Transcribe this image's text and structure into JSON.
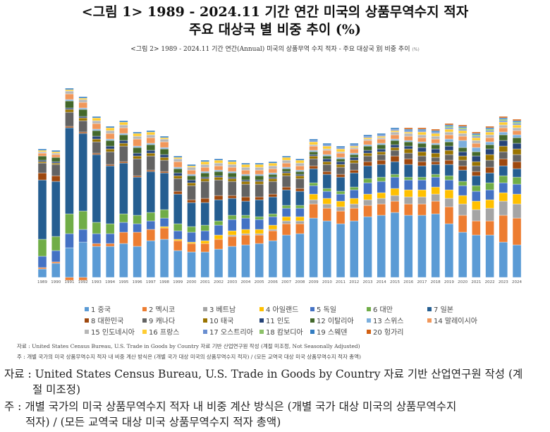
{
  "heading": {
    "line1": "<그림 1> 1989 - 2024.11 기간 연간 미국의 상품무역수지 적자",
    "line2": "주요 대상국 별 비중 추이 (%)"
  },
  "chart_data": {
    "type": "bar",
    "stacked": true,
    "title": "<그림 2> 1989 - 2024.11 기간 연간(Annual) 미국의 상품무역 수지 적자 - 주요 대상국 別 비중 추이",
    "title_unit": "(%)",
    "legend_position": "bottom",
    "grid": false,
    "ylim": [
      -5,
      135
    ],
    "categories": [
      "1989",
      "1990",
      "1991",
      "1992",
      "1993",
      "1994",
      "1995",
      "1996",
      "1997",
      "1998",
      "1999",
      "2000",
      "2001",
      "2002",
      "2003",
      "2004",
      "2005",
      "2006",
      "2007",
      "2008",
      "2009",
      "2010",
      "2011",
      "2012",
      "2013",
      "2014",
      "2015",
      "2016",
      "2017",
      "2018",
      "2019",
      "2020",
      "2021",
      "2022",
      "2023",
      "2024"
    ],
    "series": [
      {
        "name": "1 중국",
        "color": "#5b9bd5",
        "values": [
          6,
          10,
          21,
          25,
          22,
          22,
          24,
          22,
          26,
          27,
          19,
          18,
          18,
          20,
          22,
          23,
          24,
          26,
          30,
          31,
          42,
          40,
          38,
          40,
          43,
          44,
          46,
          44,
          44,
          45,
          38,
          32,
          30,
          30,
          25,
          23
        ]
      },
      {
        "name": "2 멕시코",
        "color": "#ed7d31",
        "values": [
          1,
          1,
          -2,
          -2,
          2,
          2,
          8,
          10,
          8,
          8,
          7,
          6,
          6,
          7,
          7,
          7,
          6,
          7,
          8,
          7,
          10,
          9,
          9,
          9,
          8,
          8,
          8,
          8,
          8,
          9,
          12,
          12,
          10,
          10,
          19,
          19
        ]
      },
      {
        "name": "3 베트남",
        "color": "#a5a5a5",
        "values": [
          0,
          0,
          0,
          0,
          0,
          0,
          0,
          0,
          0,
          0,
          0,
          0,
          0,
          0,
          1,
          1,
          1,
          1,
          2,
          2,
          3,
          3,
          3,
          3,
          4,
          4,
          4,
          5,
          5,
          5,
          6,
          8,
          8,
          9,
          10,
          10
        ]
      },
      {
        "name": "4 아일랜드",
        "color": "#ffc000",
        "values": [
          0,
          0,
          0,
          0,
          0,
          0,
          0,
          0,
          0,
          1,
          1,
          1,
          2,
          3,
          3,
          3,
          3,
          3,
          3,
          3,
          4,
          4,
          4,
          4,
          4,
          4,
          5,
          5,
          5,
          5,
          6,
          6,
          6,
          6,
          6,
          7
        ]
      },
      {
        "name": "5 독일",
        "color": "#4472c4",
        "values": [
          8,
          8,
          10,
          9,
          7,
          7,
          7,
          6,
          6,
          6,
          6,
          7,
          7,
          7,
          8,
          8,
          7,
          6,
          6,
          6,
          6,
          5,
          5,
          6,
          8,
          8,
          8,
          7,
          7,
          7,
          7,
          7,
          7,
          7,
          7,
          7
        ]
      },
      {
        "name": "6 대만",
        "color": "#70ad47",
        "values": [
          12,
          10,
          14,
          13,
          8,
          7,
          6,
          6,
          6,
          6,
          5,
          4,
          4,
          3,
          3,
          2,
          2,
          2,
          2,
          2,
          2,
          2,
          2,
          2,
          3,
          3,
          2,
          2,
          2,
          2,
          3,
          3,
          4,
          5,
          5,
          5
        ]
      },
      {
        "name": "7 일본",
        "color": "#255e91",
        "values": [
          42,
          39,
          61,
          55,
          48,
          41,
          36,
          27,
          29,
          26,
          21,
          17,
          16,
          15,
          12,
          10,
          12,
          12,
          11,
          10,
          10,
          10,
          10,
          10,
          9,
          9,
          9,
          9,
          8,
          7,
          8,
          8,
          7,
          7,
          7,
          6
        ]
      },
      {
        "name": "8 대한민국",
        "color": "#9e480e",
        "values": [
          5,
          4,
          1,
          1,
          1,
          1,
          1,
          1,
          1,
          1,
          2,
          2,
          3,
          3,
          2,
          3,
          2,
          2,
          2,
          2,
          2,
          2,
          2,
          2,
          3,
          3,
          4,
          4,
          3,
          2,
          3,
          3,
          3,
          4,
          5,
          5
        ]
      },
      {
        "name": "9 캐나다",
        "color": "#636363",
        "values": [
          7,
          8,
          10,
          8,
          8,
          9,
          11,
          12,
          10,
          8,
          9,
          10,
          12,
          11,
          10,
          9,
          9,
          9,
          8,
          7,
          5,
          5,
          5,
          5,
          4,
          4,
          4,
          4,
          4,
          3,
          4,
          4,
          4,
          5,
          5,
          5
        ]
      },
      {
        "name": "10 태국",
        "color": "#997300",
        "values": [
          1,
          1,
          2,
          2,
          2,
          2,
          2,
          2,
          2,
          2,
          2,
          2,
          2,
          2,
          2,
          2,
          2,
          2,
          2,
          2,
          2,
          2,
          2,
          2,
          2,
          2,
          2,
          3,
          3,
          3,
          3,
          3,
          3,
          4,
          4,
          4
        ]
      },
      {
        "name": "11 인도",
        "color": "#264478",
        "values": [
          1,
          1,
          1,
          1,
          2,
          2,
          2,
          2,
          2,
          2,
          2,
          2,
          1,
          1,
          1,
          1,
          1,
          1,
          1,
          1,
          1,
          2,
          2,
          2,
          2,
          2,
          2,
          2,
          3,
          3,
          3,
          3,
          4,
          4,
          4,
          4
        ]
      },
      {
        "name": "12 이탈리아",
        "color": "#43682b",
        "values": [
          3,
          3,
          5,
          5,
          4,
          4,
          4,
          4,
          4,
          4,
          3,
          3,
          3,
          3,
          3,
          3,
          3,
          2,
          2,
          2,
          2,
          2,
          2,
          2,
          3,
          3,
          3,
          3,
          3,
          3,
          3,
          3,
          3,
          3,
          4,
          4
        ]
      },
      {
        "name": "13 스위스",
        "color": "#7cafdd",
        "values": [
          0,
          0,
          1,
          1,
          1,
          1,
          1,
          1,
          1,
          1,
          1,
          1,
          1,
          1,
          1,
          1,
          1,
          1,
          1,
          1,
          1,
          1,
          1,
          1,
          1,
          1,
          1,
          1,
          1,
          1,
          2,
          5,
          3,
          2,
          2,
          2
        ]
      },
      {
        "name": "14 말레이시아",
        "color": "#f1975a",
        "values": [
          2,
          2,
          4,
          4,
          4,
          4,
          4,
          5,
          4,
          4,
          4,
          3,
          3,
          3,
          3,
          3,
          3,
          3,
          3,
          3,
          3,
          3,
          3,
          3,
          3,
          3,
          3,
          3,
          3,
          3,
          3,
          3,
          3,
          3,
          3,
          3
        ]
      },
      {
        "name": "15 인도네시아",
        "color": "#b7b7b7",
        "values": [
          1,
          1,
          2,
          2,
          2,
          2,
          2,
          2,
          2,
          2,
          2,
          2,
          2,
          2,
          2,
          2,
          2,
          2,
          2,
          2,
          1,
          1,
          1,
          1,
          1,
          1,
          2,
          2,
          2,
          2,
          2,
          2,
          2,
          2,
          2,
          2
        ]
      },
      {
        "name": "16 프랑스",
        "color": "#ffcd33",
        "values": [
          1,
          1,
          1,
          1,
          2,
          2,
          2,
          2,
          2,
          1,
          1,
          1,
          2,
          2,
          2,
          2,
          2,
          2,
          2,
          2,
          2,
          2,
          2,
          1,
          1,
          1,
          1,
          1,
          2,
          2,
          2,
          2,
          2,
          2,
          2,
          2
        ]
      },
      {
        "name": "17 오스트리아",
        "color": "#698ed0",
        "values": [
          0,
          0,
          0,
          0,
          0,
          0,
          0,
          0,
          0,
          0,
          0,
          0,
          0,
          0,
          0,
          0,
          0,
          0,
          0,
          0,
          1,
          1,
          1,
          1,
          1,
          1,
          1,
          1,
          1,
          1,
          1,
          1,
          1,
          1,
          1,
          1
        ]
      },
      {
        "name": "18 캄보디아",
        "color": "#8cc168",
        "values": [
          0,
          0,
          0,
          0,
          0,
          0,
          0,
          0,
          0,
          0,
          0,
          0,
          0,
          0,
          0,
          0,
          0,
          0,
          0,
          0,
          0,
          0,
          0,
          0,
          0,
          0,
          0,
          0,
          0,
          0,
          1,
          1,
          1,
          1,
          1,
          1
        ]
      },
      {
        "name": "19 스웨덴",
        "color": "#327dc2",
        "values": [
          1,
          1,
          1,
          1,
          1,
          1,
          1,
          1,
          1,
          1,
          1,
          1,
          1,
          1,
          1,
          1,
          1,
          1,
          1,
          1,
          1,
          1,
          1,
          1,
          1,
          1,
          1,
          1,
          1,
          1,
          1,
          1,
          1,
          1,
          1,
          1
        ]
      },
      {
        "name": "20 헝가리",
        "color": "#d26012",
        "values": [
          0,
          0,
          0,
          0,
          0,
          0,
          0,
          0,
          0,
          0,
          0,
          0,
          0,
          0,
          0,
          0,
          0,
          0,
          0,
          0,
          0,
          0,
          0,
          0,
          0,
          0,
          0,
          1,
          1,
          1,
          1,
          1,
          1,
          1,
          1,
          1
        ]
      }
    ]
  },
  "figure_notes": {
    "source": "자료 : United States Census Bureau, U.S. Trade in Goods by Country 자료 기반 산업연구원 작성 (계절 미조정, Not Seasonally Adjusted)",
    "note": "주 : 개별 국가의 미국 상품무역수지 적자 내 비중 계산 방식은 (개별 국가 대상 미국의 상품무역수지 적자) / (모든 교역국 대상 미국 상품무역수지 적자 총액)"
  },
  "body_notes": {
    "source_line1": "자료 : United States Census Bureau, U.S. Trade in Goods by Country 자료 기반 산업연구원 작성 (계",
    "source_line2": "절 미조정)",
    "note_line1": "주 : 개별 국가의 미국 상품무역수지 적자 내 비중 계산 방식은 (개별 국가 대상 미국의 상품무역수지",
    "note_line2": "적자) / (모든 교역국 대상 미국 상품무역수지 적자 총액)"
  }
}
